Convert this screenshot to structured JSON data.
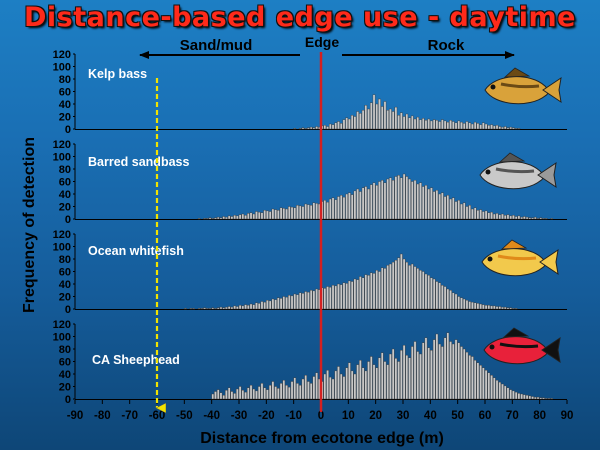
{
  "title": "Distance-based edge use - daytime",
  "colors": {
    "title": "#ff2a1a",
    "bar_fill": "#c8c8c8",
    "bar_stroke": "#3a3a3a",
    "edge_line": "#d42020",
    "marker_line": "#f2e400",
    "background": "#1a6fb4"
  },
  "icons": [
    "kelp-bass-fish-icon",
    "barred-sandbass-fish-icon",
    "ocean-whitefish-fish-icon",
    "ca-sheephead-fish-icon"
  ],
  "annotations": {
    "left_arrow": "Sand/mud",
    "right_arrow": "Rock",
    "edge": "Edge",
    "marker_x": -60
  },
  "chart_data": {
    "type": "bar",
    "title": "Distance-based edge use - daytime",
    "xlabel": "Distance from ecotone edge (m)",
    "ylabel": "Frequency of detection",
    "xlim": [
      -90,
      90
    ],
    "x_ticks": [
      -90,
      -80,
      -70,
      -60,
      -50,
      -40,
      -30,
      -20,
      -10,
      0,
      10,
      20,
      30,
      40,
      50,
      60,
      70,
      80,
      90
    ],
    "ylim": [
      0,
      120
    ],
    "y_ticks": [
      0,
      20,
      40,
      60,
      80,
      100,
      120
    ],
    "bin_width_m": 1,
    "grid": false,
    "panels": [
      {
        "name": "Kelp bass",
        "x_start": -10,
        "values": [
          1,
          0,
          1,
          2,
          1,
          2,
          3,
          2,
          4,
          3,
          5,
          6,
          4,
          8,
          7,
          10,
          12,
          9,
          15,
          18,
          16,
          22,
          20,
          28,
          25,
          30,
          38,
          32,
          42,
          55,
          40,
          48,
          36,
          44,
          30,
          32,
          28,
          35,
          22,
          26,
          20,
          24,
          18,
          21,
          16,
          19,
          15,
          17,
          14,
          16,
          13,
          15,
          14,
          12,
          15,
          13,
          11,
          14,
          12,
          10,
          13,
          11,
          9,
          12,
          10,
          8,
          11,
          9,
          7,
          10,
          8,
          6,
          7,
          5,
          6,
          4,
          3,
          4,
          2,
          3,
          2,
          1,
          1
        ]
      },
      {
        "name": "Barred sandbass",
        "x_start": -45,
        "values": [
          1,
          0,
          1,
          1,
          2,
          1,
          2,
          3,
          2,
          4,
          3,
          5,
          4,
          6,
          5,
          7,
          8,
          6,
          9,
          10,
          8,
          12,
          11,
          10,
          14,
          13,
          12,
          16,
          15,
          14,
          18,
          17,
          16,
          20,
          19,
          18,
          22,
          21,
          20,
          24,
          23,
          22,
          26,
          25,
          24,
          28,
          30,
          27,
          32,
          34,
          31,
          36,
          38,
          35,
          40,
          42,
          39,
          45,
          48,
          44,
          50,
          52,
          48,
          55,
          58,
          54,
          60,
          62,
          58,
          64,
          66,
          62,
          68,
          70,
          66,
          72,
          68,
          64,
          60,
          62,
          56,
          58,
          52,
          54,
          48,
          50,
          44,
          46,
          40,
          42,
          36,
          38,
          32,
          34,
          28,
          30,
          24,
          26,
          20,
          22,
          16,
          18,
          14,
          15,
          12,
          13,
          10,
          11,
          8,
          9,
          7,
          8,
          6,
          7,
          5,
          6,
          4,
          5,
          3,
          4,
          3,
          2,
          2,
          3,
          1,
          2,
          1,
          1,
          0,
          1
        ]
      },
      {
        "name": "Ocean whitefish",
        "x_start": -50,
        "values": [
          1,
          0,
          1,
          1,
          0,
          1,
          1,
          2,
          1,
          1,
          2,
          1,
          2,
          3,
          2,
          3,
          4,
          3,
          5,
          4,
          6,
          5,
          7,
          6,
          8,
          7,
          10,
          9,
          12,
          11,
          14,
          13,
          16,
          15,
          18,
          17,
          20,
          19,
          22,
          21,
          24,
          23,
          26,
          25,
          28,
          27,
          30,
          29,
          32,
          31,
          34,
          33,
          36,
          35,
          38,
          37,
          40,
          39,
          42,
          41,
          45,
          44,
          48,
          47,
          52,
          50,
          55,
          54,
          58,
          57,
          62,
          60,
          66,
          65,
          70,
          72,
          75,
          78,
          82,
          88,
          80,
          75,
          70,
          72,
          68,
          65,
          62,
          60,
          56,
          54,
          50,
          48,
          44,
          42,
          38,
          36,
          32,
          30,
          26,
          24,
          20,
          18,
          16,
          14,
          12,
          11,
          10,
          9,
          8,
          7,
          6,
          6,
          5,
          5,
          4,
          4,
          3,
          3,
          2,
          2,
          1,
          1
        ]
      },
      {
        "name": "CA Sheephead",
        "x_start": -40,
        "values": [
          8,
          12,
          15,
          10,
          6,
          14,
          18,
          12,
          9,
          16,
          20,
          14,
          11,
          18,
          22,
          16,
          13,
          20,
          25,
          18,
          15,
          22,
          28,
          20,
          17,
          25,
          30,
          22,
          19,
          28,
          34,
          25,
          22,
          32,
          38,
          28,
          25,
          36,
          42,
          32,
          28,
          40,
          46,
          35,
          32,
          45,
          52,
          40,
          36,
          50,
          58,
          45,
          40,
          55,
          62,
          50,
          45,
          60,
          68,
          55,
          50,
          66,
          74,
          60,
          55,
          72,
          80,
          65,
          60,
          78,
          86,
          70,
          66,
          84,
          92,
          76,
          72,
          90,
          98,
          82,
          78,
          95,
          104,
          88,
          84,
          98,
          106,
          92,
          88,
          95,
          90,
          84,
          80,
          75,
          70,
          68,
          62,
          58,
          54,
          50,
          46,
          42,
          38,
          34,
          30,
          27,
          24,
          21,
          18,
          15,
          13,
          11,
          9,
          8,
          7,
          6,
          5,
          4,
          3,
          3,
          2,
          2,
          1,
          1,
          1
        ]
      }
    ]
  }
}
